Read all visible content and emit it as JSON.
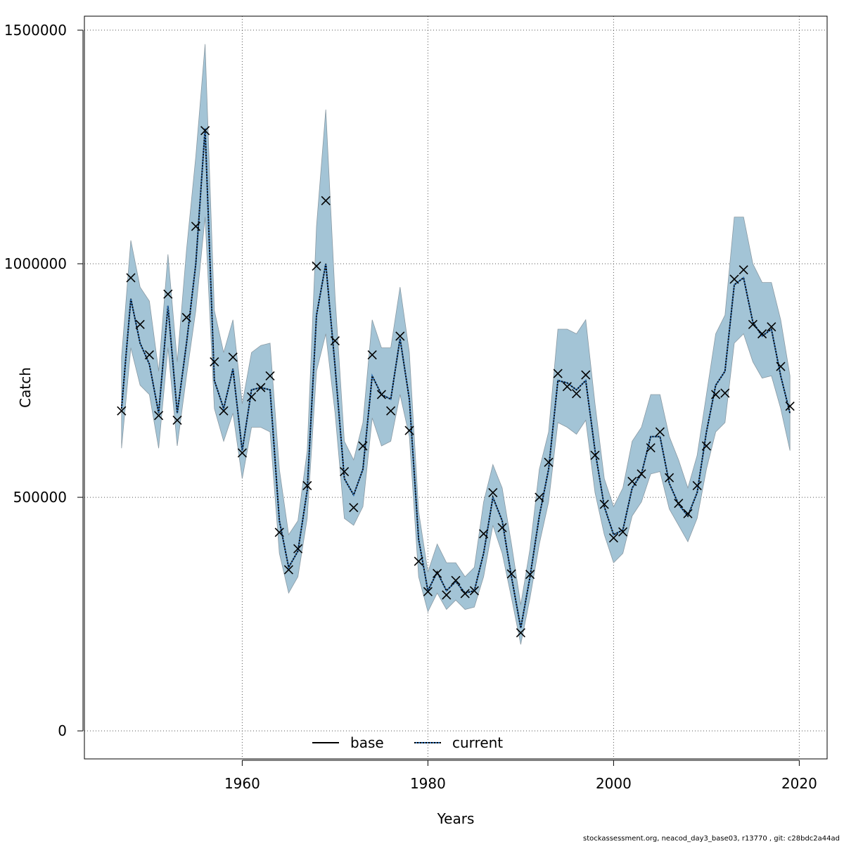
{
  "chart_data": {
    "type": "line",
    "xlabel": "Years",
    "ylabel": "Catch",
    "xlim": [
      1943,
      2023
    ],
    "ylim": [
      -60000,
      1530000
    ],
    "x_ticks": [
      1960,
      1980,
      2000,
      2020
    ],
    "y_ticks": [
      0,
      500000,
      1000000,
      1500000
    ],
    "x_tick_labels": [
      "1960",
      "1980",
      "2000",
      "2020"
    ],
    "y_tick_labels": [
      "0",
      "500000",
      "1000000",
      "1500000"
    ],
    "grid": true,
    "legend": {
      "position": "bottom-center",
      "entries": [
        {
          "label": "base",
          "style": "solid",
          "color": "#000000"
        },
        {
          "label": "current",
          "style": "dotted",
          "color": "#000000",
          "dot_color": "#2b6cb0"
        }
      ]
    },
    "band_color": "#a3c4d6",
    "years": [
      1947,
      1948,
      1949,
      1950,
      1951,
      1952,
      1953,
      1954,
      1955,
      1956,
      1957,
      1958,
      1959,
      1960,
      1961,
      1962,
      1963,
      1964,
      1965,
      1966,
      1967,
      1968,
      1969,
      1970,
      1971,
      1972,
      1973,
      1974,
      1975,
      1976,
      1977,
      1978,
      1979,
      1980,
      1981,
      1982,
      1983,
      1984,
      1985,
      1986,
      1987,
      1988,
      1989,
      1990,
      1991,
      1992,
      1993,
      1994,
      1995,
      1996,
      1997,
      1998,
      1999,
      2000,
      2001,
      2002,
      2003,
      2004,
      2005,
      2006,
      2007,
      2008,
      2009,
      2010,
      2011,
      2012,
      2013,
      2014,
      2015,
      2016,
      2017,
      2018,
      2019
    ],
    "series": [
      {
        "name": "current",
        "style": "dotted",
        "values": [
          690000,
          925000,
          830000,
          785000,
          680000,
          910000,
          680000,
          830000,
          1000000,
          1290000,
          750000,
          690000,
          775000,
          600000,
          730000,
          735000,
          730000,
          450000,
          350000,
          385000,
          515000,
          890000,
          1000000,
          780000,
          540000,
          505000,
          560000,
          760000,
          720000,
          710000,
          840000,
          710000,
          410000,
          300000,
          340000,
          300000,
          320000,
          295000,
          300000,
          380000,
          500000,
          450000,
          330000,
          220000,
          330000,
          460000,
          560000,
          750000,
          745000,
          730000,
          750000,
          600000,
          480000,
          420000,
          430000,
          520000,
          550000,
          630000,
          630000,
          530000,
          485000,
          460000,
          510000,
          640000,
          740000,
          770000,
          955000,
          970000,
          875000,
          845000,
          860000,
          760000,
          680000
        ]
      }
    ],
    "observed": [
      685000,
      970000,
      870000,
      805000,
      675000,
      935000,
      665000,
      885000,
      1080000,
      1285000,
      790000,
      685000,
      800000,
      595000,
      715000,
      735000,
      760000,
      425000,
      345000,
      390000,
      525000,
      995000,
      1135000,
      835000,
      555000,
      478000,
      610000,
      805000,
      720000,
      685000,
      845000,
      643000,
      363000,
      298000,
      337000,
      291000,
      322000,
      294000,
      300000,
      422000,
      510000,
      435000,
      336000,
      210000,
      335000,
      500000,
      575000,
      765000,
      737000,
      722000,
      762000,
      590000,
      485000,
      413000,
      426000,
      534000,
      550000,
      606000,
      640000,
      542000,
      487000,
      465000,
      525000,
      610000,
      720000,
      723000,
      967000,
      987000,
      870000,
      850000,
      865000,
      780000,
      695000
    ],
    "ci_upper": [
      800000,
      1050000,
      950000,
      920000,
      770000,
      1020000,
      790000,
      1030000,
      1230000,
      1470000,
      900000,
      810000,
      880000,
      700000,
      810000,
      825000,
      830000,
      560000,
      420000,
      450000,
      600000,
      1080000,
      1330000,
      930000,
      620000,
      580000,
      660000,
      880000,
      820000,
      820000,
      950000,
      810000,
      470000,
      340000,
      400000,
      360000,
      360000,
      330000,
      350000,
      490000,
      570000,
      520000,
      400000,
      270000,
      390000,
      560000,
      640000,
      860000,
      860000,
      850000,
      880000,
      700000,
      540000,
      480000,
      520000,
      620000,
      650000,
      720000,
      720000,
      630000,
      580000,
      520000,
      590000,
      720000,
      850000,
      890000,
      1100000,
      1100000,
      1000000,
      960000,
      960000,
      880000,
      760000
    ],
    "ci_lower": [
      605000,
      820000,
      740000,
      720000,
      605000,
      820000,
      610000,
      760000,
      900000,
      1100000,
      690000,
      620000,
      680000,
      540000,
      650000,
      650000,
      640000,
      380000,
      295000,
      330000,
      455000,
      770000,
      850000,
      680000,
      455000,
      440000,
      480000,
      670000,
      610000,
      620000,
      720000,
      630000,
      330000,
      255000,
      295000,
      260000,
      280000,
      260000,
      265000,
      330000,
      440000,
      380000,
      285000,
      185000,
      285000,
      400000,
      490000,
      660000,
      650000,
      635000,
      665000,
      510000,
      420000,
      360000,
      380000,
      460000,
      490000,
      550000,
      555000,
      475000,
      440000,
      405000,
      455000,
      560000,
      640000,
      660000,
      830000,
      850000,
      790000,
      755000,
      760000,
      690000,
      600000
    ]
  },
  "footer": "stockassessment.org, neacod_day3_base03, r13770 , git: c28bdc2a44ad"
}
